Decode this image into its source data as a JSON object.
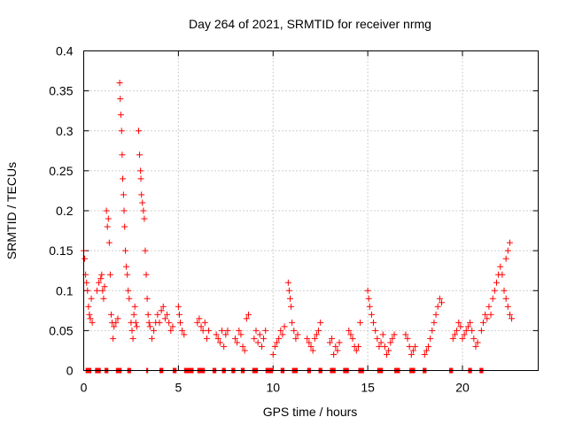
{
  "chart_data": {
    "type": "scatter",
    "title": "Day 264 of 2021, SRMTID for receiver nrmg",
    "xlabel": "GPS time / hours",
    "ylabel": "SRMTID / TECUs",
    "xlim": [
      0,
      24
    ],
    "ylim": [
      0,
      0.4
    ],
    "xticks": [
      0,
      5,
      10,
      15,
      20
    ],
    "xtick_labels": [
      "0",
      "5",
      "10",
      "15",
      "20"
    ],
    "yticks": [
      0,
      0.05,
      0.1,
      0.15,
      0.2,
      0.25,
      0.3,
      0.35,
      0.4
    ],
    "ytick_labels": [
      "0",
      "0.05",
      "0.1",
      "0.15",
      "0.2",
      "0.25",
      "0.3",
      "0.35",
      "0.4"
    ],
    "grid": true,
    "marker": "+",
    "marker_color": "#ff0000",
    "series": [
      {
        "name": "SRMTID",
        "points": [
          [
            0.0,
            0.15
          ],
          [
            0.05,
            0.14
          ],
          [
            0.1,
            0.12
          ],
          [
            0.15,
            0.11
          ],
          [
            0.2,
            0.1
          ],
          [
            0.25,
            0.08
          ],
          [
            0.3,
            0.07
          ],
          [
            0.35,
            0.065
          ],
          [
            0.4,
            0.09
          ],
          [
            0.45,
            0.06
          ],
          [
            0.7,
            0.1
          ],
          [
            0.8,
            0.11
          ],
          [
            0.9,
            0.115
          ],
          [
            0.95,
            0.12
          ],
          [
            1.0,
            0.1
          ],
          [
            1.05,
            0.09
          ],
          [
            1.1,
            0.105
          ],
          [
            1.2,
            0.2
          ],
          [
            1.25,
            0.18
          ],
          [
            1.3,
            0.19
          ],
          [
            1.35,
            0.16
          ],
          [
            1.4,
            0.12
          ],
          [
            1.45,
            0.07
          ],
          [
            1.5,
            0.06
          ],
          [
            1.55,
            0.04
          ],
          [
            1.6,
            0.055
          ],
          [
            1.7,
            0.06
          ],
          [
            1.8,
            0.065
          ],
          [
            1.9,
            0.36
          ],
          [
            1.93,
            0.34
          ],
          [
            1.96,
            0.32
          ],
          [
            2.0,
            0.3
          ],
          [
            2.03,
            0.27
          ],
          [
            2.06,
            0.24
          ],
          [
            2.1,
            0.22
          ],
          [
            2.13,
            0.2
          ],
          [
            2.16,
            0.18
          ],
          [
            2.2,
            0.15
          ],
          [
            2.25,
            0.13
          ],
          [
            2.3,
            0.12
          ],
          [
            2.35,
            0.1
          ],
          [
            2.4,
            0.09
          ],
          [
            2.5,
            0.06
          ],
          [
            2.55,
            0.05
          ],
          [
            2.6,
            0.04
          ],
          [
            2.65,
            0.07
          ],
          [
            2.7,
            0.08
          ],
          [
            2.75,
            0.06
          ],
          [
            2.8,
            0.055
          ],
          [
            2.9,
            0.3
          ],
          [
            2.95,
            0.27
          ],
          [
            3.0,
            0.25
          ],
          [
            3.02,
            0.24
          ],
          [
            3.05,
            0.22
          ],
          [
            3.1,
            0.21
          ],
          [
            3.15,
            0.2
          ],
          [
            3.2,
            0.19
          ],
          [
            3.25,
            0.15
          ],
          [
            3.3,
            0.12
          ],
          [
            3.35,
            0.09
          ],
          [
            3.4,
            0.07
          ],
          [
            3.45,
            0.06
          ],
          [
            3.5,
            0.055
          ],
          [
            3.6,
            0.04
          ],
          [
            3.7,
            0.05
          ],
          [
            3.8,
            0.06
          ],
          [
            3.9,
            0.07
          ],
          [
            4.0,
            0.06
          ],
          [
            4.1,
            0.075
          ],
          [
            4.2,
            0.08
          ],
          [
            4.3,
            0.065
          ],
          [
            4.4,
            0.07
          ],
          [
            4.5,
            0.06
          ],
          [
            4.6,
            0.05
          ],
          [
            4.7,
            0.055
          ],
          [
            5.0,
            0.08
          ],
          [
            5.05,
            0.07
          ],
          [
            5.1,
            0.06
          ],
          [
            5.2,
            0.05
          ],
          [
            5.3,
            0.045
          ],
          [
            6.0,
            0.06
          ],
          [
            6.1,
            0.065
          ],
          [
            6.2,
            0.055
          ],
          [
            6.3,
            0.05
          ],
          [
            6.4,
            0.06
          ],
          [
            6.5,
            0.04
          ],
          [
            6.6,
            0.05
          ],
          [
            7.0,
            0.045
          ],
          [
            7.1,
            0.04
          ],
          [
            7.2,
            0.035
          ],
          [
            7.3,
            0.05
          ],
          [
            7.4,
            0.03
          ],
          [
            7.5,
            0.045
          ],
          [
            7.6,
            0.05
          ],
          [
            8.0,
            0.04
          ],
          [
            8.1,
            0.035
          ],
          [
            8.2,
            0.05
          ],
          [
            8.3,
            0.045
          ],
          [
            8.4,
            0.03
          ],
          [
            8.5,
            0.025
          ],
          [
            8.6,
            0.065
          ],
          [
            8.7,
            0.07
          ],
          [
            9.0,
            0.04
          ],
          [
            9.1,
            0.05
          ],
          [
            9.2,
            0.035
          ],
          [
            9.3,
            0.045
          ],
          [
            9.4,
            0.03
          ],
          [
            9.5,
            0.04
          ],
          [
            9.6,
            0.05
          ],
          [
            10.0,
            0.02
          ],
          [
            10.1,
            0.03
          ],
          [
            10.2,
            0.035
          ],
          [
            10.3,
            0.04
          ],
          [
            10.4,
            0.05
          ],
          [
            10.5,
            0.045
          ],
          [
            10.6,
            0.055
          ],
          [
            10.8,
            0.11
          ],
          [
            10.85,
            0.1
          ],
          [
            10.9,
            0.09
          ],
          [
            10.95,
            0.08
          ],
          [
            11.0,
            0.06
          ],
          [
            11.1,
            0.05
          ],
          [
            11.2,
            0.04
          ],
          [
            11.3,
            0.045
          ],
          [
            11.8,
            0.04
          ],
          [
            11.9,
            0.035
          ],
          [
            12.0,
            0.03
          ],
          [
            12.1,
            0.025
          ],
          [
            12.2,
            0.04
          ],
          [
            12.3,
            0.045
          ],
          [
            12.4,
            0.05
          ],
          [
            12.5,
            0.06
          ],
          [
            13.0,
            0.035
          ],
          [
            13.1,
            0.04
          ],
          [
            13.2,
            0.02
          ],
          [
            13.3,
            0.03
          ],
          [
            13.4,
            0.025
          ],
          [
            13.5,
            0.035
          ],
          [
            14.0,
            0.05
          ],
          [
            14.1,
            0.045
          ],
          [
            14.2,
            0.04
          ],
          [
            14.3,
            0.03
          ],
          [
            14.4,
            0.025
          ],
          [
            14.5,
            0.03
          ],
          [
            14.6,
            0.06
          ],
          [
            15.0,
            0.1
          ],
          [
            15.05,
            0.09
          ],
          [
            15.1,
            0.08
          ],
          [
            15.2,
            0.07
          ],
          [
            15.3,
            0.06
          ],
          [
            15.4,
            0.05
          ],
          [
            15.5,
            0.04
          ],
          [
            15.6,
            0.03
          ],
          [
            15.7,
            0.035
          ],
          [
            15.8,
            0.045
          ],
          [
            15.9,
            0.03
          ],
          [
            16.0,
            0.02
          ],
          [
            16.1,
            0.025
          ],
          [
            16.2,
            0.035
          ],
          [
            16.3,
            0.04
          ],
          [
            16.4,
            0.045
          ],
          [
            17.0,
            0.045
          ],
          [
            17.1,
            0.04
          ],
          [
            17.2,
            0.03
          ],
          [
            17.3,
            0.02
          ],
          [
            17.4,
            0.025
          ],
          [
            17.5,
            0.03
          ],
          [
            18.0,
            0.02
          ],
          [
            18.1,
            0.025
          ],
          [
            18.2,
            0.03
          ],
          [
            18.3,
            0.04
          ],
          [
            18.4,
            0.05
          ],
          [
            18.5,
            0.06
          ],
          [
            18.6,
            0.07
          ],
          [
            18.7,
            0.08
          ],
          [
            18.8,
            0.09
          ],
          [
            18.9,
            0.085
          ],
          [
            19.5,
            0.04
          ],
          [
            19.6,
            0.045
          ],
          [
            19.7,
            0.05
          ],
          [
            19.8,
            0.06
          ],
          [
            19.9,
            0.055
          ],
          [
            20.0,
            0.04
          ],
          [
            20.1,
            0.045
          ],
          [
            20.2,
            0.05
          ],
          [
            20.3,
            0.055
          ],
          [
            20.4,
            0.06
          ],
          [
            20.5,
            0.05
          ],
          [
            20.6,
            0.04
          ],
          [
            20.7,
            0.03
          ],
          [
            20.8,
            0.035
          ],
          [
            21.0,
            0.05
          ],
          [
            21.1,
            0.06
          ],
          [
            21.2,
            0.07
          ],
          [
            21.3,
            0.065
          ],
          [
            21.4,
            0.08
          ],
          [
            21.5,
            0.07
          ],
          [
            21.6,
            0.09
          ],
          [
            21.7,
            0.1
          ],
          [
            21.8,
            0.11
          ],
          [
            21.9,
            0.12
          ],
          [
            22.0,
            0.13
          ],
          [
            22.1,
            0.12
          ],
          [
            22.2,
            0.1
          ],
          [
            22.3,
            0.09
          ],
          [
            22.4,
            0.08
          ],
          [
            22.5,
            0.07
          ],
          [
            22.6,
            0.065
          ],
          [
            22.3,
            0.14
          ],
          [
            22.4,
            0.15
          ],
          [
            22.5,
            0.16
          ]
        ]
      }
    ],
    "zero_gaps": [
      [
        0.1,
        0.4
      ],
      [
        0.6,
        0.9
      ],
      [
        1.1,
        1.3
      ],
      [
        1.7,
        2.0
      ],
      [
        2.3,
        2.5
      ],
      [
        3.3,
        3.4
      ],
      [
        4.0,
        4.2
      ],
      [
        4.7,
        4.9
      ],
      [
        5.3,
        5.8
      ],
      [
        6.0,
        6.4
      ],
      [
        6.8,
        7.0
      ],
      [
        7.3,
        7.5
      ],
      [
        7.8,
        8.0
      ],
      [
        8.3,
        8.5
      ],
      [
        8.9,
        9.2
      ],
      [
        9.6,
        10.0
      ],
      [
        10.4,
        10.6
      ],
      [
        11.0,
        11.3
      ],
      [
        11.8,
        12.0
      ],
      [
        12.4,
        12.6
      ],
      [
        13.0,
        13.3
      ],
      [
        13.7,
        14.0
      ],
      [
        14.5,
        14.8
      ],
      [
        15.5,
        15.8
      ],
      [
        16.4,
        16.7
      ],
      [
        17.2,
        17.5
      ],
      [
        17.9,
        18.1
      ],
      [
        19.3,
        19.5
      ],
      [
        20.3,
        20.5
      ],
      [
        20.9,
        21.1
      ]
    ]
  }
}
